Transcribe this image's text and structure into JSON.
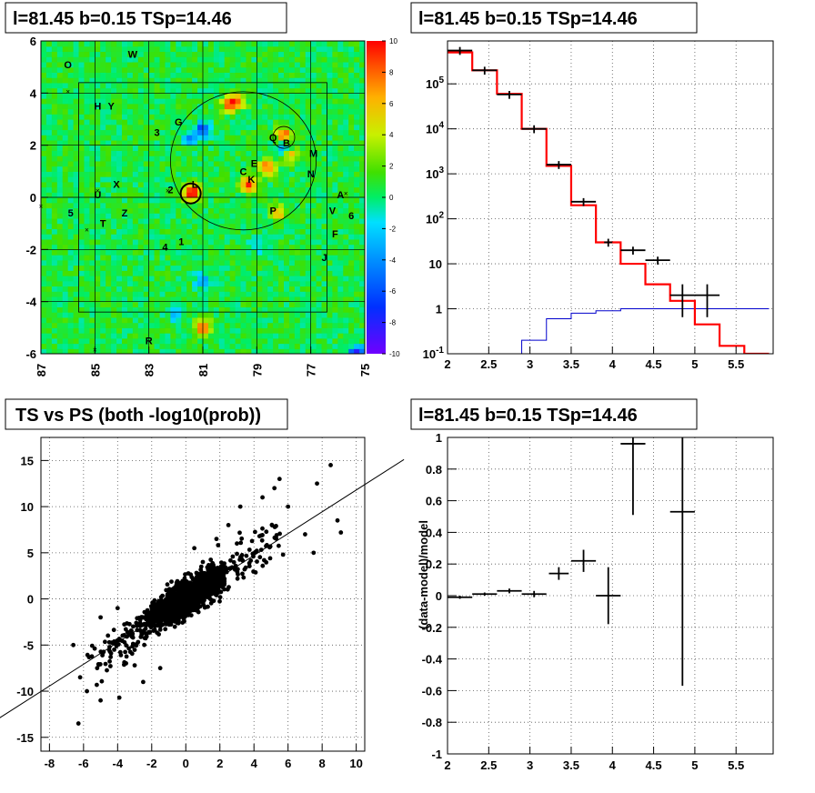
{
  "titles": {
    "skymap": "l=81.45 b=0.15 TSp=14.46",
    "spectrum": "l=81.45 b=0.15 TSp=14.46",
    "scatter": "TS vs PS (both -log10(prob))",
    "residual": "l=81.45 b=0.15 TSp=14.46"
  },
  "colors": {
    "model": "#ff0000",
    "background": "#0000cc",
    "data": "#000000"
  },
  "chart_data": [
    {
      "type": "heatmap",
      "title": "l=81.45 b=0.15 TSp=14.46",
      "xlim": [
        87,
        75
      ],
      "ylim": [
        -6,
        6
      ],
      "x_ticks": [
        "87",
        "85",
        "83",
        "81",
        "79",
        "77",
        "75"
      ],
      "y_ticks": [
        "6",
        "4",
        "2",
        "0",
        "-2",
        "-4",
        "-6"
      ],
      "palette_ticks": [
        "10",
        "8",
        "6",
        "4",
        "2",
        "0",
        "-2",
        "-4",
        "-6",
        "-8",
        "-10"
      ],
      "zlim": [
        -10,
        10
      ],
      "hotspots": [
        {
          "x": 81.4,
          "y": 0.2,
          "v": 10
        },
        {
          "x": 78.0,
          "y": 2.4,
          "v": 9
        },
        {
          "x": 79.3,
          "y": 0.5,
          "v": 9
        },
        {
          "x": 78.6,
          "y": 1.2,
          "v": 8
        },
        {
          "x": 80.0,
          "y": 3.6,
          "v": 7
        },
        {
          "x": 79.7,
          "y": 3.7,
          "v": 6
        },
        {
          "x": 81.0,
          "y": -5.0,
          "v": 8
        },
        {
          "x": 78.2,
          "y": -0.6,
          "v": 5
        },
        {
          "x": 77.7,
          "y": 1.6,
          "v": 5
        }
      ],
      "coldspots": [
        {
          "x": 81.0,
          "y": 2.6,
          "v": -7
        },
        {
          "x": 81.5,
          "y": 2.3,
          "v": -4
        },
        {
          "x": 78.0,
          "y": 2.0,
          "v": -4
        },
        {
          "x": 81.0,
          "y": -3.2,
          "v": -4
        },
        {
          "x": 79.0,
          "y": -1.8,
          "v": -3
        },
        {
          "x": 82.0,
          "y": -4.5,
          "v": -3
        },
        {
          "x": 75.3,
          "y": -6.0,
          "v": -10
        }
      ],
      "labels": [
        {
          "t": "O",
          "x": 86.0,
          "y": 5.1
        },
        {
          "t": "W",
          "x": 83.6,
          "y": 5.5
        },
        {
          "t": "H",
          "x": 84.9,
          "y": 3.5
        },
        {
          "t": "Y",
          "x": 84.4,
          "y": 3.5
        },
        {
          "t": "3",
          "x": 82.7,
          "y": 2.5
        },
        {
          "t": "G",
          "x": 81.9,
          "y": 2.9
        },
        {
          "t": "Q",
          "x": 78.4,
          "y": 2.3
        },
        {
          "t": "B",
          "x": 77.9,
          "y": 2.1
        },
        {
          "t": "M",
          "x": 76.9,
          "y": 1.7
        },
        {
          "t": "N",
          "x": 77.0,
          "y": 0.9
        },
        {
          "t": "E",
          "x": 79.1,
          "y": 1.3
        },
        {
          "t": "C",
          "x": 79.5,
          "y": 1.0
        },
        {
          "t": "K",
          "x": 79.2,
          "y": 0.7
        },
        {
          "t": "L",
          "x": 81.3,
          "y": 0.5
        },
        {
          "t": "X",
          "x": 84.2,
          "y": 0.5
        },
        {
          "t": "2",
          "x": 82.2,
          "y": 0.3
        },
        {
          "t": "U",
          "x": 84.9,
          "y": 0.1
        },
        {
          "t": "A",
          "x": 75.9,
          "y": 0.1
        },
        {
          "t": "5",
          "x": 85.9,
          "y": -0.6
        },
        {
          "t": "T",
          "x": 84.7,
          "y": -1.0
        },
        {
          "t": "Z",
          "x": 83.9,
          "y": -0.6
        },
        {
          "t": "P",
          "x": 78.4,
          "y": -0.5
        },
        {
          "t": "V",
          "x": 76.2,
          "y": -0.5
        },
        {
          "t": "6",
          "x": 75.5,
          "y": -0.7
        },
        {
          "t": "F",
          "x": 76.1,
          "y": -1.4
        },
        {
          "t": "4",
          "x": 82.4,
          "y": -1.9
        },
        {
          "t": "1",
          "x": 81.8,
          "y": -1.7
        },
        {
          "t": "J",
          "x": 76.5,
          "y": -2.3
        },
        {
          "t": "R",
          "x": 83.0,
          "y": -5.5
        }
      ]
    },
    {
      "type": "line",
      "title": "l=81.45 b=0.15 TSp=14.46",
      "x_ticks": [
        "2",
        "2.5",
        "3",
        "3.5",
        "4",
        "4.5",
        "5",
        "5.5"
      ],
      "y_ticks": [
        "10^-1",
        "1",
        "10",
        "10^2",
        "10^3",
        "10^4",
        "10^5"
      ],
      "y_scale": "log",
      "xlim": [
        2,
        5.95
      ],
      "ylim": [
        0.1,
        900000
      ],
      "bin_edges": [
        2.0,
        2.3,
        2.6,
        2.9,
        3.2,
        3.5,
        3.8,
        4.1,
        4.4,
        4.7,
        5.0,
        5.3,
        5.6,
        5.9
      ],
      "series": [
        {
          "values": [
            500000,
            200000,
            60000,
            10000,
            1500,
            200,
            30,
            10,
            3.5,
            1.5,
            0.45,
            0.15,
            0.1
          ]
        },
        {
          "values": [
            0.05,
            0.05,
            0.05,
            0.2,
            0.6,
            0.8,
            0.9,
            1.0,
            1.0,
            1.0,
            1.0,
            1.0,
            1.0
          ]
        }
      ],
      "points": [
        {
          "x": 2.15,
          "y": 550000,
          "xe": 0.15
        },
        {
          "x": 2.45,
          "y": 200000,
          "xe": 0.15
        },
        {
          "x": 2.75,
          "y": 58000,
          "xe": 0.15
        },
        {
          "x": 3.05,
          "y": 10000,
          "xe": 0.15
        },
        {
          "x": 3.35,
          "y": 1600,
          "xe": 0.15
        },
        {
          "x": 3.65,
          "y": 240,
          "xe": 0.15
        },
        {
          "x": 3.95,
          "y": 30,
          "xe": 0.05
        },
        {
          "x": 4.25,
          "y": 20,
          "xe": 0.15
        },
        {
          "x": 4.55,
          "y": 12,
          "xe": 0.15
        },
        {
          "x": 4.85,
          "y": 2.0,
          "xe": 0.15,
          "ylo": 0.65,
          "yhi": 3.5
        },
        {
          "x": 5.15,
          "y": 2.0,
          "xe": 0.15,
          "ylo": 0.65,
          "yhi": 3.5
        }
      ]
    },
    {
      "type": "scatter",
      "title": "TS vs PS (both -log10(prob))",
      "x_ticks": [
        "-8",
        "-6",
        "-4",
        "-2",
        "0",
        "2",
        "4",
        "6",
        "8",
        "10"
      ],
      "y_ticks": [
        "15",
        "10",
        "5",
        "0",
        "-5",
        "-10",
        "-15"
      ],
      "xlim": [
        -8.5,
        10.5
      ],
      "ylim": [
        -16.5,
        17.5
      ],
      "fit_line": {
        "slope": 1.18,
        "intercept": 0
      },
      "notable_points": [
        [
          -6.3,
          -13.5
        ],
        [
          -5.8,
          -10
        ],
        [
          -5,
          -11
        ],
        [
          -3.9,
          -10.7
        ],
        [
          -6.2,
          -8.5
        ],
        [
          -6.6,
          -5
        ],
        [
          -5.2,
          -7.5
        ],
        [
          -3,
          -7.2
        ],
        [
          -4.2,
          -5.5
        ],
        [
          -5,
          -2
        ],
        [
          -4,
          -1
        ],
        [
          -2.5,
          -9
        ],
        [
          -1.5,
          -7.5
        ],
        [
          8.5,
          14.5
        ],
        [
          7.7,
          12.5
        ],
        [
          8.9,
          8.5
        ],
        [
          9.1,
          7.2
        ],
        [
          5.5,
          13
        ],
        [
          5.2,
          12
        ],
        [
          6,
          10
        ],
        [
          7,
          7
        ],
        [
          7.5,
          5
        ],
        [
          4.5,
          11
        ],
        [
          3.2,
          10
        ],
        [
          2.5,
          8
        ],
        [
          1.8,
          6.5
        ],
        [
          3,
          6
        ],
        [
          1,
          4
        ],
        [
          0.5,
          5.5
        ]
      ]
    },
    {
      "type": "scatter",
      "title": "l=81.45 b=0.15 TSp=14.46",
      "ylabel": "(data-model)/model",
      "x_ticks": [
        "2",
        "2.5",
        "3",
        "3.5",
        "4",
        "4.5",
        "5",
        "5.5"
      ],
      "y_ticks": [
        "1",
        "0.8",
        "0.6",
        "0.4",
        "0.2",
        "0",
        "-0.2",
        "-0.4",
        "-0.6",
        "-0.8",
        "-1"
      ],
      "xlim": [
        2,
        5.95
      ],
      "ylim": [
        -1,
        1
      ],
      "points": [
        {
          "x": 2.15,
          "y": -0.01,
          "xe": 0.15,
          "ye": 0.01
        },
        {
          "x": 2.45,
          "y": 0.01,
          "xe": 0.15,
          "ye": 0.01
        },
        {
          "x": 2.75,
          "y": 0.03,
          "xe": 0.15,
          "ye": 0.015
        },
        {
          "x": 3.05,
          "y": 0.01,
          "xe": 0.15,
          "ye": 0.02
        },
        {
          "x": 3.35,
          "y": 0.14,
          "xe": 0.12,
          "ye": 0.04
        },
        {
          "x": 3.65,
          "y": 0.22,
          "xe": 0.15,
          "ye": 0.07
        },
        {
          "x": 3.95,
          "y": 0.0,
          "xe": 0.15,
          "ye": 0.18
        },
        {
          "x": 4.25,
          "y": 0.96,
          "xe": 0.15,
          "ye": 0.45
        },
        {
          "x": 4.85,
          "y": 0.53,
          "xe": 0.15,
          "ye": 1.1
        }
      ]
    }
  ]
}
